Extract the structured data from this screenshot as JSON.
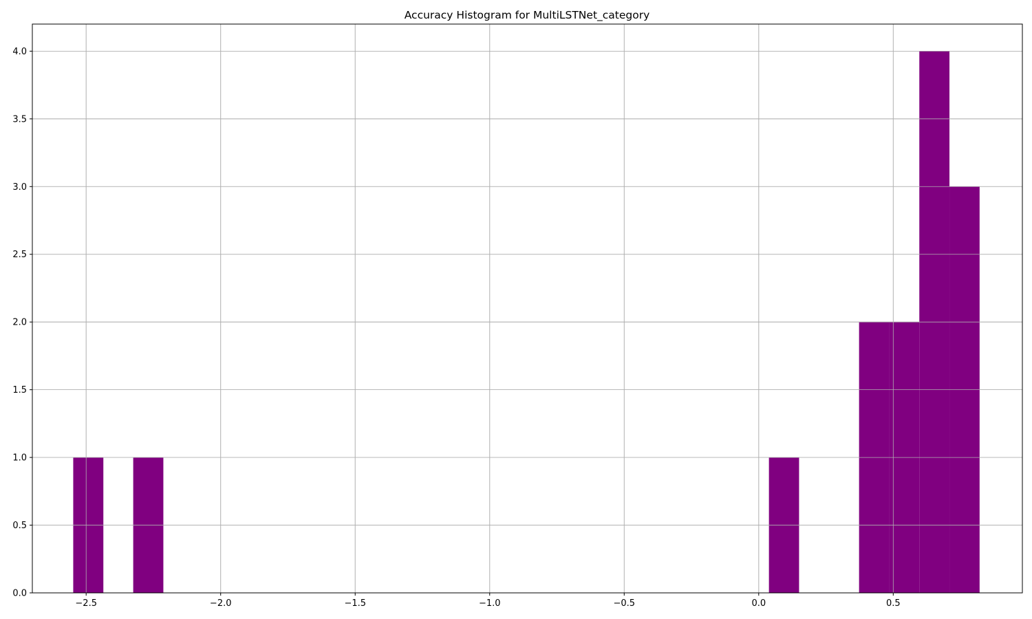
{
  "chart_data": {
    "type": "bar",
    "title": "Accuracy Histogram for MultiLSTNet_category",
    "xlabel": "",
    "ylabel": "",
    "xlim": [
      -2.7,
      0.98
    ],
    "ylim": [
      0,
      4.2
    ],
    "grid": true,
    "bar_color": "#800080",
    "grid_color": "#b0b0b0",
    "bins": [
      {
        "x0": -2.548,
        "x1": -2.436,
        "count": 1
      },
      {
        "x0": -2.325,
        "x1": -2.213,
        "count": 1
      },
      {
        "x0": 0.038,
        "x1": 0.15,
        "count": 1
      },
      {
        "x0": 0.373,
        "x1": 0.485,
        "count": 2
      },
      {
        "x0": 0.485,
        "x1": 0.597,
        "count": 2
      },
      {
        "x0": 0.597,
        "x1": 0.709,
        "count": 4
      },
      {
        "x0": 0.709,
        "x1": 0.821,
        "count": 3
      }
    ],
    "x_ticks": [
      {
        "value": -2.5,
        "label": "−2.5"
      },
      {
        "value": -2.0,
        "label": "−2.0"
      },
      {
        "value": -1.5,
        "label": "−1.5"
      },
      {
        "value": -1.0,
        "label": "−1.0"
      },
      {
        "value": -0.5,
        "label": "−0.5"
      },
      {
        "value": 0.0,
        "label": "0.0"
      },
      {
        "value": 0.5,
        "label": "0.5"
      }
    ],
    "y_ticks": [
      {
        "value": 0.0,
        "label": "0.0"
      },
      {
        "value": 0.5,
        "label": "0.5"
      },
      {
        "value": 1.0,
        "label": "1.0"
      },
      {
        "value": 1.5,
        "label": "1.5"
      },
      {
        "value": 2.0,
        "label": "2.0"
      },
      {
        "value": 2.5,
        "label": "2.5"
      },
      {
        "value": 3.0,
        "label": "3.0"
      },
      {
        "value": 3.5,
        "label": "3.5"
      },
      {
        "value": 4.0,
        "label": "4.0"
      }
    ]
  }
}
